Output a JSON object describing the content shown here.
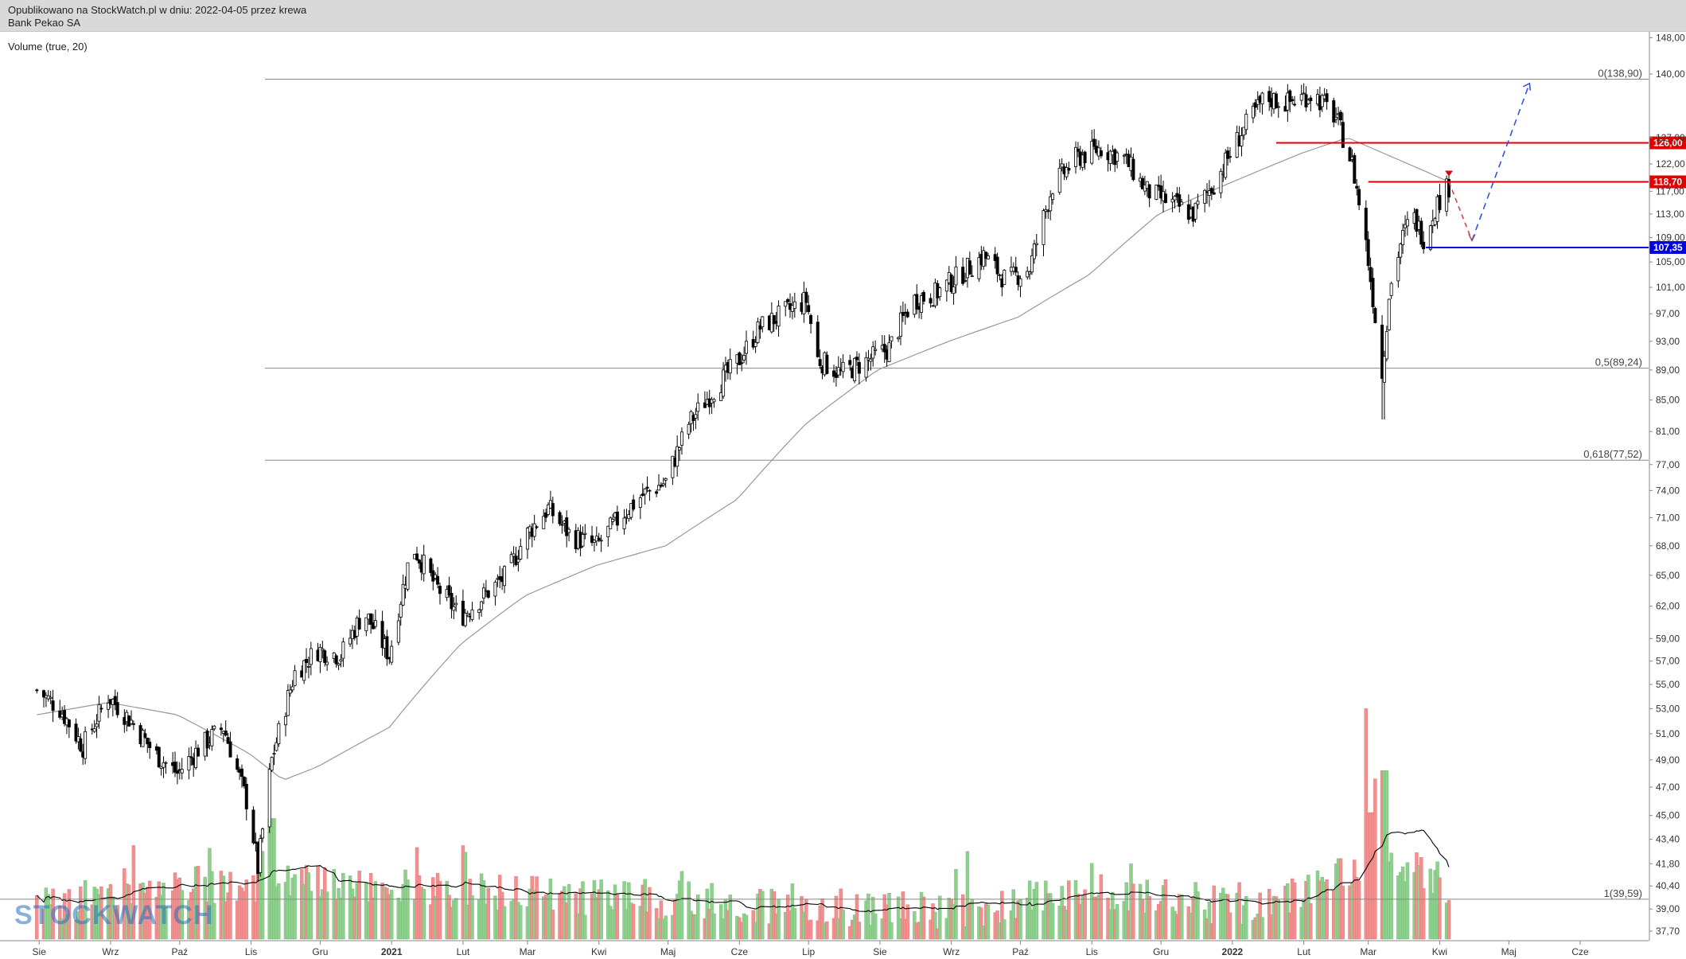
{
  "header": {
    "published": "Opublikowano na StockWatch.pl w dniu: 2022-04-05 przez krewa",
    "instrument": "Bank Pekao SA"
  },
  "volume_panel": {
    "title": "Volume (true, 20)"
  },
  "watermark": "STOCKWATCH",
  "colors": {
    "up": "#1f1f1f",
    "down": "#000000",
    "vol_up": "#8fd08f",
    "vol_down": "#f29090",
    "ma": "#999999",
    "fib": "#888888",
    "resistance": "#e00000",
    "support": "#0000e0",
    "arrow_up": "#3355dd",
    "arrow_down": "#dd4444"
  },
  "chart_data": {
    "type": "candlestick",
    "title": "Bank Pekao SA",
    "y_axis": {
      "ticks": [
        148.0,
        140.0,
        127.0,
        122.0,
        117.0,
        113.0,
        109.0,
        105.0,
        101.0,
        97.0,
        93.0,
        89.0,
        85.0,
        81.0,
        77.0,
        74.0,
        71.0,
        68.0,
        65.0,
        62.0,
        59.0,
        57.0,
        55.0,
        53.0,
        51.0,
        49.0,
        47.0,
        45.0,
        43.4,
        41.8,
        40.4,
        39.0,
        37.7
      ],
      "scale": "log",
      "range": [
        37.0,
        149.0
      ]
    },
    "x_axis": {
      "labels": [
        "Sie",
        "Wrz",
        "Paź",
        "Lis",
        "Gru",
        "2021",
        "Lut",
        "Mar",
        "Kwi",
        "Maj",
        "Cze",
        "Lip",
        "Sie",
        "Wrz",
        "Paź",
        "Lis",
        "Gru",
        "2022",
        "Lut",
        "Mar",
        "Kwi",
        "Maj",
        "Cze"
      ],
      "bold": [
        "2021",
        "2022"
      ]
    },
    "close_path": [
      [
        "2020-07-31",
        54.5
      ],
      [
        "2020-08-10",
        53.0
      ],
      [
        "2020-08-20",
        50.0
      ],
      [
        "2020-08-31",
        54.0
      ],
      [
        "2020-09-10",
        52.0
      ],
      [
        "2020-09-20",
        49.5
      ],
      [
        "2020-09-30",
        48.0
      ],
      [
        "2020-10-10",
        50.0
      ],
      [
        "2020-10-20",
        51.5
      ],
      [
        "2020-10-31",
        45.5
      ],
      [
        "2020-11-04",
        41.5
      ],
      [
        "2020-11-10",
        49.0
      ],
      [
        "2020-11-20",
        56.0
      ],
      [
        "2020-11-30",
        58.0
      ],
      [
        "2020-12-10",
        57.5
      ],
      [
        "2020-12-20",
        61.5
      ],
      [
        "2020-12-31",
        57.5
      ],
      [
        "2021-01-10",
        68.0
      ],
      [
        "2021-01-20",
        64.0
      ],
      [
        "2021-01-31",
        61.0
      ],
      [
        "2021-02-10",
        63.0
      ],
      [
        "2021-02-20",
        65.0
      ],
      [
        "2021-02-28",
        69.0
      ],
      [
        "2021-03-10",
        72.0
      ],
      [
        "2021-03-20",
        69.0
      ],
      [
        "2021-03-31",
        68.0
      ],
      [
        "2021-04-10",
        71.0
      ],
      [
        "2021-04-20",
        73.5
      ],
      [
        "2021-04-30",
        75.0
      ],
      [
        "2021-05-10",
        82.0
      ],
      [
        "2021-05-20",
        86.0
      ],
      [
        "2021-05-31",
        90.0
      ],
      [
        "2021-06-10",
        95.0
      ],
      [
        "2021-06-20",
        97.0
      ],
      [
        "2021-06-30",
        99.0
      ],
      [
        "2021-07-05",
        90.5
      ],
      [
        "2021-07-15",
        88.5
      ],
      [
        "2021-07-25",
        90.0
      ],
      [
        "2021-08-05",
        92.0
      ],
      [
        "2021-08-15",
        99.0
      ],
      [
        "2021-08-25",
        100.0
      ],
      [
        "2021-09-05",
        103.0
      ],
      [
        "2021-09-15",
        106.0
      ],
      [
        "2021-09-25",
        102.0
      ],
      [
        "2021-10-05",
        104.0
      ],
      [
        "2021-10-15",
        118.0
      ],
      [
        "2021-10-25",
        123.0
      ],
      [
        "2021-11-05",
        125.0
      ],
      [
        "2021-11-15",
        123.0
      ],
      [
        "2021-11-25",
        117.0
      ],
      [
        "2021-12-05",
        115.0
      ],
      [
        "2021-12-15",
        113.0
      ],
      [
        "2021-12-25",
        119.0
      ],
      [
        "2022-01-05",
        128.0
      ],
      [
        "2022-01-15",
        135.0
      ],
      [
        "2022-01-25",
        134.0
      ],
      [
        "2022-02-05",
        136.0
      ],
      [
        "2022-02-15",
        131.0
      ],
      [
        "2022-02-22",
        122.0
      ],
      [
        "2022-02-28",
        108.0
      ],
      [
        "2022-03-07",
        88.0
      ],
      [
        "2022-03-10",
        100.0
      ],
      [
        "2022-03-15",
        108.0
      ],
      [
        "2022-03-20",
        113.0
      ],
      [
        "2022-03-25",
        109.0
      ],
      [
        "2022-03-31",
        115.0
      ],
      [
        "2022-04-05",
        118.0
      ]
    ],
    "ma_path": [
      [
        "2020-07-31",
        52.5
      ],
      [
        "2020-08-31",
        53.5
      ],
      [
        "2020-09-30",
        52.5
      ],
      [
        "2020-10-31",
        49.5
      ],
      [
        "2020-11-15",
        47.5
      ],
      [
        "2020-11-30",
        48.5
      ],
      [
        "2020-12-31",
        51.5
      ],
      [
        "2021-01-31",
        58.5
      ],
      [
        "2021-02-28",
        63.0
      ],
      [
        "2021-03-31",
        66.0
      ],
      [
        "2021-04-30",
        68.0
      ],
      [
        "2021-05-31",
        73.0
      ],
      [
        "2021-06-30",
        82.0
      ],
      [
        "2021-07-31",
        89.0
      ],
      [
        "2021-08-31",
        93.0
      ],
      [
        "2021-09-30",
        96.5
      ],
      [
        "2021-10-31",
        103.0
      ],
      [
        "2021-11-30",
        113.0
      ],
      [
        "2021-12-31",
        118.5
      ],
      [
        "2022-01-31",
        124.0
      ],
      [
        "2022-02-20",
        127.0
      ],
      [
        "2022-03-05",
        124.5
      ],
      [
        "2022-04-05",
        118.7
      ]
    ],
    "fibonacci": [
      {
        "label": "0(138,90)",
        "value": 138.9
      },
      {
        "label": "0,5(89,24)",
        "value": 89.24
      },
      {
        "label": "0,618(77,52)",
        "value": 77.52
      },
      {
        "label": "1(39,59)",
        "value": 39.59
      }
    ],
    "levels": [
      {
        "label": "126,00",
        "value": 126.0,
        "kind": "resistance",
        "start": "2022-01-20"
      },
      {
        "label": "118,70",
        "value": 118.7,
        "kind": "resistance",
        "start": "2022-03-01"
      },
      {
        "label": "107,35",
        "value": 107.35,
        "kind": "support",
        "start": "2022-03-26"
      }
    ],
    "projection": {
      "down": [
        [
          "2022-04-05",
          118.7
        ],
        [
          "2022-04-15",
          108.5
        ]
      ],
      "up": [
        [
          "2022-04-15",
          108.5
        ],
        [
          "2022-05-10",
          138.0
        ]
      ]
    },
    "volume": {
      "name": "Volume (true, 20)",
      "spikes": [
        [
          "2020-11-05",
          42.6
        ],
        [
          "2020-11-10",
          44.8
        ],
        [
          "2022-02-28",
          53.0
        ],
        [
          "2022-03-04",
          47.6
        ],
        [
          "2022-03-08",
          48.2
        ],
        [
          "2022-03-02",
          45.2
        ]
      ]
    },
    "grid": false,
    "legend": "none"
  }
}
